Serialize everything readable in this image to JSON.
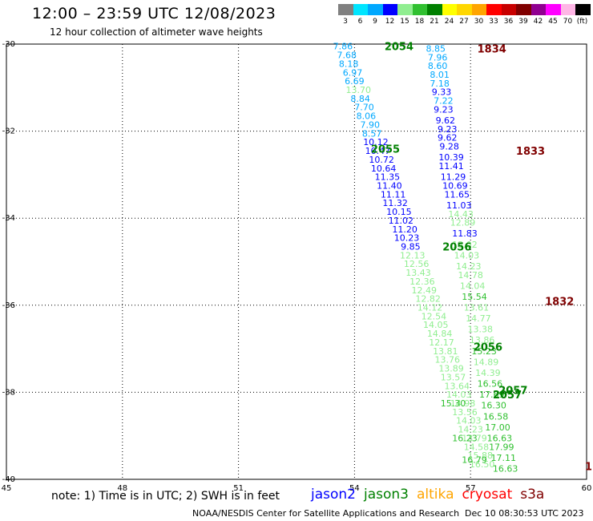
{
  "title": "12:00 – 23:59 UTC 12/08/2023",
  "subtitle": "12 hour collection of altimeter wave heights",
  "colorbar": {
    "unit": "(ft)",
    "stops": [
      {
        "label": "3",
        "color": "#808080"
      },
      {
        "label": "6",
        "color": "#00e5ff"
      },
      {
        "label": "9",
        "color": "#00a8ff"
      },
      {
        "label": "12",
        "color": "#0000ff"
      },
      {
        "label": "15",
        "color": "#90ee90"
      },
      {
        "label": "18",
        "color": "#30c030"
      },
      {
        "label": "21",
        "color": "#008000"
      },
      {
        "label": "24",
        "color": "#ffff00"
      },
      {
        "label": "27",
        "color": "#ffd700"
      },
      {
        "label": "30",
        "color": "#ffa500"
      },
      {
        "label": "33",
        "color": "#ff0000"
      },
      {
        "label": "36",
        "color": "#c80000"
      },
      {
        "label": "39",
        "color": "#800000"
      },
      {
        "label": "42",
        "color": "#900090"
      },
      {
        "label": "45",
        "color": "#ff00ff"
      },
      {
        "label": "70",
        "color": "#ffb6e6"
      },
      {
        "label": "",
        "color": "#000000"
      }
    ]
  },
  "axes": {
    "lon_ticks": [
      "45",
      "48",
      "51",
      "54",
      "57",
      "60"
    ],
    "lat_ticks": [
      "-30",
      "-32",
      "-34",
      "-36",
      "-38",
      "-40"
    ],
    "lon_range": [
      45,
      60
    ],
    "lat_range": [
      -30,
      -40
    ],
    "grid": "dotted"
  },
  "tracks": [
    {
      "label": "2054",
      "color": "#008000",
      "lon": 55.15,
      "lat": -30.05
    },
    {
      "label": "2055",
      "color": "#008000",
      "lon": 54.8,
      "lat": -32.4
    },
    {
      "label": "2056",
      "color": "#008000",
      "lon": 56.65,
      "lat": -34.65
    },
    {
      "label": "2056",
      "color": "#008000",
      "lon": 57.45,
      "lat": -36.95
    },
    {
      "label": "2057",
      "color": "#008000",
      "lon": 58.1,
      "lat": -37.95
    },
    {
      "label": "2057",
      "color": "#008000",
      "lon": 57.95,
      "lat": -38.05
    },
    {
      "label": "1834",
      "color": "#800000",
      "lon": 57.55,
      "lat": -30.1
    },
    {
      "label": "1833",
      "color": "#800000",
      "lon": 58.55,
      "lat": -32.45
    },
    {
      "label": "1832",
      "color": "#800000",
      "lon": 59.3,
      "lat": -35.9
    },
    {
      "label": "1",
      "color": "#800000",
      "lon": 60.05,
      "lat": -39.7
    }
  ],
  "swh_values": [
    {
      "v": "7.86",
      "c": "#00a8ff",
      "lon": 53.7,
      "lat": -30.05
    },
    {
      "v": "7.68",
      "c": "#00a8ff",
      "lon": 53.8,
      "lat": -30.25
    },
    {
      "v": "8.18",
      "c": "#00a8ff",
      "lon": 53.85,
      "lat": -30.45
    },
    {
      "v": "6.97",
      "c": "#00a8ff",
      "lon": 53.95,
      "lat": -30.65
    },
    {
      "v": "6.69",
      "c": "#00a8ff",
      "lon": 54.0,
      "lat": -30.85
    },
    {
      "v": "13.70",
      "c": "#90ee90",
      "lon": 54.1,
      "lat": -31.05
    },
    {
      "v": "8.84",
      "c": "#00a8ff",
      "lon": 54.15,
      "lat": -31.25
    },
    {
      "v": "7.70",
      "c": "#00a8ff",
      "lon": 54.25,
      "lat": -31.45
    },
    {
      "v": "8.06",
      "c": "#00a8ff",
      "lon": 54.3,
      "lat": -31.65
    },
    {
      "v": "7.90",
      "c": "#00a8ff",
      "lon": 54.4,
      "lat": -31.85
    },
    {
      "v": "8.57",
      "c": "#00a8ff",
      "lon": 54.45,
      "lat": -32.05
    },
    {
      "v": "10.12",
      "c": "#0000ff",
      "lon": 54.55,
      "lat": -32.25
    },
    {
      "v": "10.47",
      "c": "#0000ff",
      "lon": 54.6,
      "lat": -32.45
    },
    {
      "v": "10.72",
      "c": "#0000ff",
      "lon": 54.7,
      "lat": -32.65
    },
    {
      "v": "10.64",
      "c": "#0000ff",
      "lon": 54.75,
      "lat": -32.85
    },
    {
      "v": "11.35",
      "c": "#0000ff",
      "lon": 54.85,
      "lat": -33.05
    },
    {
      "v": "11.40",
      "c": "#0000ff",
      "lon": 54.9,
      "lat": -33.25
    },
    {
      "v": "11.11",
      "c": "#0000ff",
      "lon": 55.0,
      "lat": -33.45
    },
    {
      "v": "11.32",
      "c": "#0000ff",
      "lon": 55.05,
      "lat": -33.65
    },
    {
      "v": "10.15",
      "c": "#0000ff",
      "lon": 55.15,
      "lat": -33.85
    },
    {
      "v": "11.02",
      "c": "#0000ff",
      "lon": 55.2,
      "lat": -34.05
    },
    {
      "v": "11.20",
      "c": "#0000ff",
      "lon": 55.3,
      "lat": -34.25
    },
    {
      "v": "10.23",
      "c": "#0000ff",
      "lon": 55.35,
      "lat": -34.45
    },
    {
      "v": "9.85",
      "c": "#0000ff",
      "lon": 55.45,
      "lat": -34.65
    },
    {
      "v": "12.13",
      "c": "#90ee90",
      "lon": 55.5,
      "lat": -34.85
    },
    {
      "v": "12.56",
      "c": "#90ee90",
      "lon": 55.6,
      "lat": -35.05
    },
    {
      "v": "13.43",
      "c": "#90ee90",
      "lon": 55.65,
      "lat": -35.25
    },
    {
      "v": "12.36",
      "c": "#90ee90",
      "lon": 55.75,
      "lat": -35.45
    },
    {
      "v": "12.49",
      "c": "#90ee90",
      "lon": 55.8,
      "lat": -35.65
    },
    {
      "v": "12.82",
      "c": "#90ee90",
      "lon": 55.9,
      "lat": -35.85
    },
    {
      "v": "14.12",
      "c": "#90ee90",
      "lon": 55.95,
      "lat": -36.05
    },
    {
      "v": "12.54",
      "c": "#90ee90",
      "lon": 56.05,
      "lat": -36.25
    },
    {
      "v": "14.05",
      "c": "#90ee90",
      "lon": 56.1,
      "lat": -36.45
    },
    {
      "v": "14.84",
      "c": "#90ee90",
      "lon": 56.2,
      "lat": -36.65
    },
    {
      "v": "12.17",
      "c": "#90ee90",
      "lon": 56.25,
      "lat": -36.85
    },
    {
      "v": "13.81",
      "c": "#90ee90",
      "lon": 56.35,
      "lat": -37.05
    },
    {
      "v": "13.76",
      "c": "#90ee90",
      "lon": 56.4,
      "lat": -37.25
    },
    {
      "v": "13.89",
      "c": "#90ee90",
      "lon": 56.5,
      "lat": -37.45
    },
    {
      "v": "13.57",
      "c": "#90ee90",
      "lon": 56.55,
      "lat": -37.65
    },
    {
      "v": "13.64",
      "c": "#90ee90",
      "lon": 56.65,
      "lat": -37.85
    },
    {
      "v": "14.03",
      "c": "#90ee90",
      "lon": 56.7,
      "lat": -38.05
    },
    {
      "v": "14.98",
      "c": "#90ee90",
      "lon": 56.8,
      "lat": -38.25
    },
    {
      "v": "13.56",
      "c": "#90ee90",
      "lon": 56.85,
      "lat": -38.45
    },
    {
      "v": "14.03",
      "c": "#90ee90",
      "lon": 56.95,
      "lat": -38.65
    },
    {
      "v": "14.23",
      "c": "#90ee90",
      "lon": 57.0,
      "lat": -38.85
    },
    {
      "v": "13.79",
      "c": "#90ee90",
      "lon": 57.1,
      "lat": -39.05
    },
    {
      "v": "14.58",
      "c": "#90ee90",
      "lon": 57.15,
      "lat": -39.25
    },
    {
      "v": "15.88",
      "c": "#90ee90",
      "lon": 57.25,
      "lat": -39.45
    },
    {
      "v": "16.50",
      "c": "#90ee90",
      "lon": 57.3,
      "lat": -39.65
    },
    {
      "v": "8.85",
      "c": "#00a8ff",
      "lon": 56.1,
      "lat": -30.1
    },
    {
      "v": "7.96",
      "c": "#00a8ff",
      "lon": 56.15,
      "lat": -30.3
    },
    {
      "v": "8.60",
      "c": "#00a8ff",
      "lon": 56.15,
      "lat": -30.5
    },
    {
      "v": "8.01",
      "c": "#00a8ff",
      "lon": 56.2,
      "lat": -30.7
    },
    {
      "v": "7.18",
      "c": "#00a8ff",
      "lon": 56.2,
      "lat": -30.9
    },
    {
      "v": "9.33",
      "c": "#0000ff",
      "lon": 56.25,
      "lat": -31.1
    },
    {
      "v": "7.22",
      "c": "#00a8ff",
      "lon": 56.3,
      "lat": -31.3
    },
    {
      "v": "9.23",
      "c": "#0000ff",
      "lon": 56.3,
      "lat": -31.5
    },
    {
      "v": "9.62",
      "c": "#0000ff",
      "lon": 56.35,
      "lat": -31.75
    },
    {
      "v": "9.23",
      "c": "#0000ff",
      "lon": 56.4,
      "lat": -31.95
    },
    {
      "v": "9.62",
      "c": "#0000ff",
      "lon": 56.4,
      "lat": -32.15
    },
    {
      "v": "9.28",
      "c": "#0000ff",
      "lon": 56.45,
      "lat": -32.35
    },
    {
      "v": "10.39",
      "c": "#0000ff",
      "lon": 56.5,
      "lat": -32.6
    },
    {
      "v": "11.41",
      "c": "#0000ff",
      "lon": 56.5,
      "lat": -32.8
    },
    {
      "v": "11.29",
      "c": "#0000ff",
      "lon": 56.55,
      "lat": -33.05
    },
    {
      "v": "10.69",
      "c": "#0000ff",
      "lon": 56.6,
      "lat": -33.25
    },
    {
      "v": "11.65",
      "c": "#0000ff",
      "lon": 56.65,
      "lat": -33.45
    },
    {
      "v": "11.03",
      "c": "#0000ff",
      "lon": 56.7,
      "lat": -33.7
    },
    {
      "v": "14.43",
      "c": "#90ee90",
      "lon": 56.75,
      "lat": -33.9
    },
    {
      "v": "12.89",
      "c": "#90ee90",
      "lon": 56.8,
      "lat": -34.1
    },
    {
      "v": "11.83",
      "c": "#0000ff",
      "lon": 56.85,
      "lat": -34.35
    },
    {
      "v": "13.02",
      "c": "#90ee90",
      "lon": 56.85,
      "lat": -34.6
    },
    {
      "v": "14.03",
      "c": "#90ee90",
      "lon": 56.9,
      "lat": -34.85
    },
    {
      "v": "14.23",
      "c": "#90ee90",
      "lon": 56.95,
      "lat": -35.1
    },
    {
      "v": "14.78",
      "c": "#90ee90",
      "lon": 57.0,
      "lat": -35.3
    },
    {
      "v": "14.04",
      "c": "#90ee90",
      "lon": 57.05,
      "lat": -35.55
    },
    {
      "v": "15.54",
      "c": "#30c030",
      "lon": 57.1,
      "lat": -35.8
    },
    {
      "v": "13.61",
      "c": "#90ee90",
      "lon": 57.15,
      "lat": -36.05
    },
    {
      "v": "14.77",
      "c": "#90ee90",
      "lon": 57.2,
      "lat": -36.3
    },
    {
      "v": "13.38",
      "c": "#90ee90",
      "lon": 57.25,
      "lat": -36.55
    },
    {
      "v": "13.86",
      "c": "#90ee90",
      "lon": 57.3,
      "lat": -36.8
    },
    {
      "v": "15.23",
      "c": "#30c030",
      "lon": 57.35,
      "lat": -37.05
    },
    {
      "v": "14.89",
      "c": "#90ee90",
      "lon": 57.4,
      "lat": -37.3
    },
    {
      "v": "14.39",
      "c": "#90ee90",
      "lon": 57.45,
      "lat": -37.55
    },
    {
      "v": "16.56",
      "c": "#30c030",
      "lon": 57.5,
      "lat": -37.8
    },
    {
      "v": "17.69",
      "c": "#30c030",
      "lon": 57.55,
      "lat": -38.05
    },
    {
      "v": "16.30",
      "c": "#30c030",
      "lon": 57.6,
      "lat": -38.3
    },
    {
      "v": "16.58",
      "c": "#30c030",
      "lon": 57.65,
      "lat": -38.55
    },
    {
      "v": "17.00",
      "c": "#30c030",
      "lon": 57.7,
      "lat": -38.8
    },
    {
      "v": "16.63",
      "c": "#30c030",
      "lon": 57.75,
      "lat": -39.05
    },
    {
      "v": "17.99",
      "c": "#30c030",
      "lon": 57.8,
      "lat": -39.25
    },
    {
      "v": "17.11",
      "c": "#30c030",
      "lon": 57.85,
      "lat": -39.5
    },
    {
      "v": "16.63",
      "c": "#30c030",
      "lon": 57.9,
      "lat": -39.75
    },
    {
      "v": "15.30",
      "c": "#30c030",
      "lon": 56.55,
      "lat": -38.25
    },
    {
      "v": "16.23",
      "c": "#30c030",
      "lon": 56.85,
      "lat": -39.05
    },
    {
      "v": "16.79",
      "c": "#30c030",
      "lon": 57.1,
      "lat": -39.55
    }
  ],
  "note": "note: 1) Time is in UTC; 2) SWH is in feet",
  "legend": [
    {
      "name": "jason2",
      "color": "#0000ff"
    },
    {
      "name": "jason3",
      "color": "#008000"
    },
    {
      "name": "altika",
      "color": "#ffa500"
    },
    {
      "name": "cryosat",
      "color": "#ff0000"
    },
    {
      "name": "s3a",
      "color": "#800000"
    }
  ],
  "credit": "NOAA/NESDIS Center for Satellite Applications and Research",
  "timestamp": "Dec 10 08:30:53 UTC 2023"
}
